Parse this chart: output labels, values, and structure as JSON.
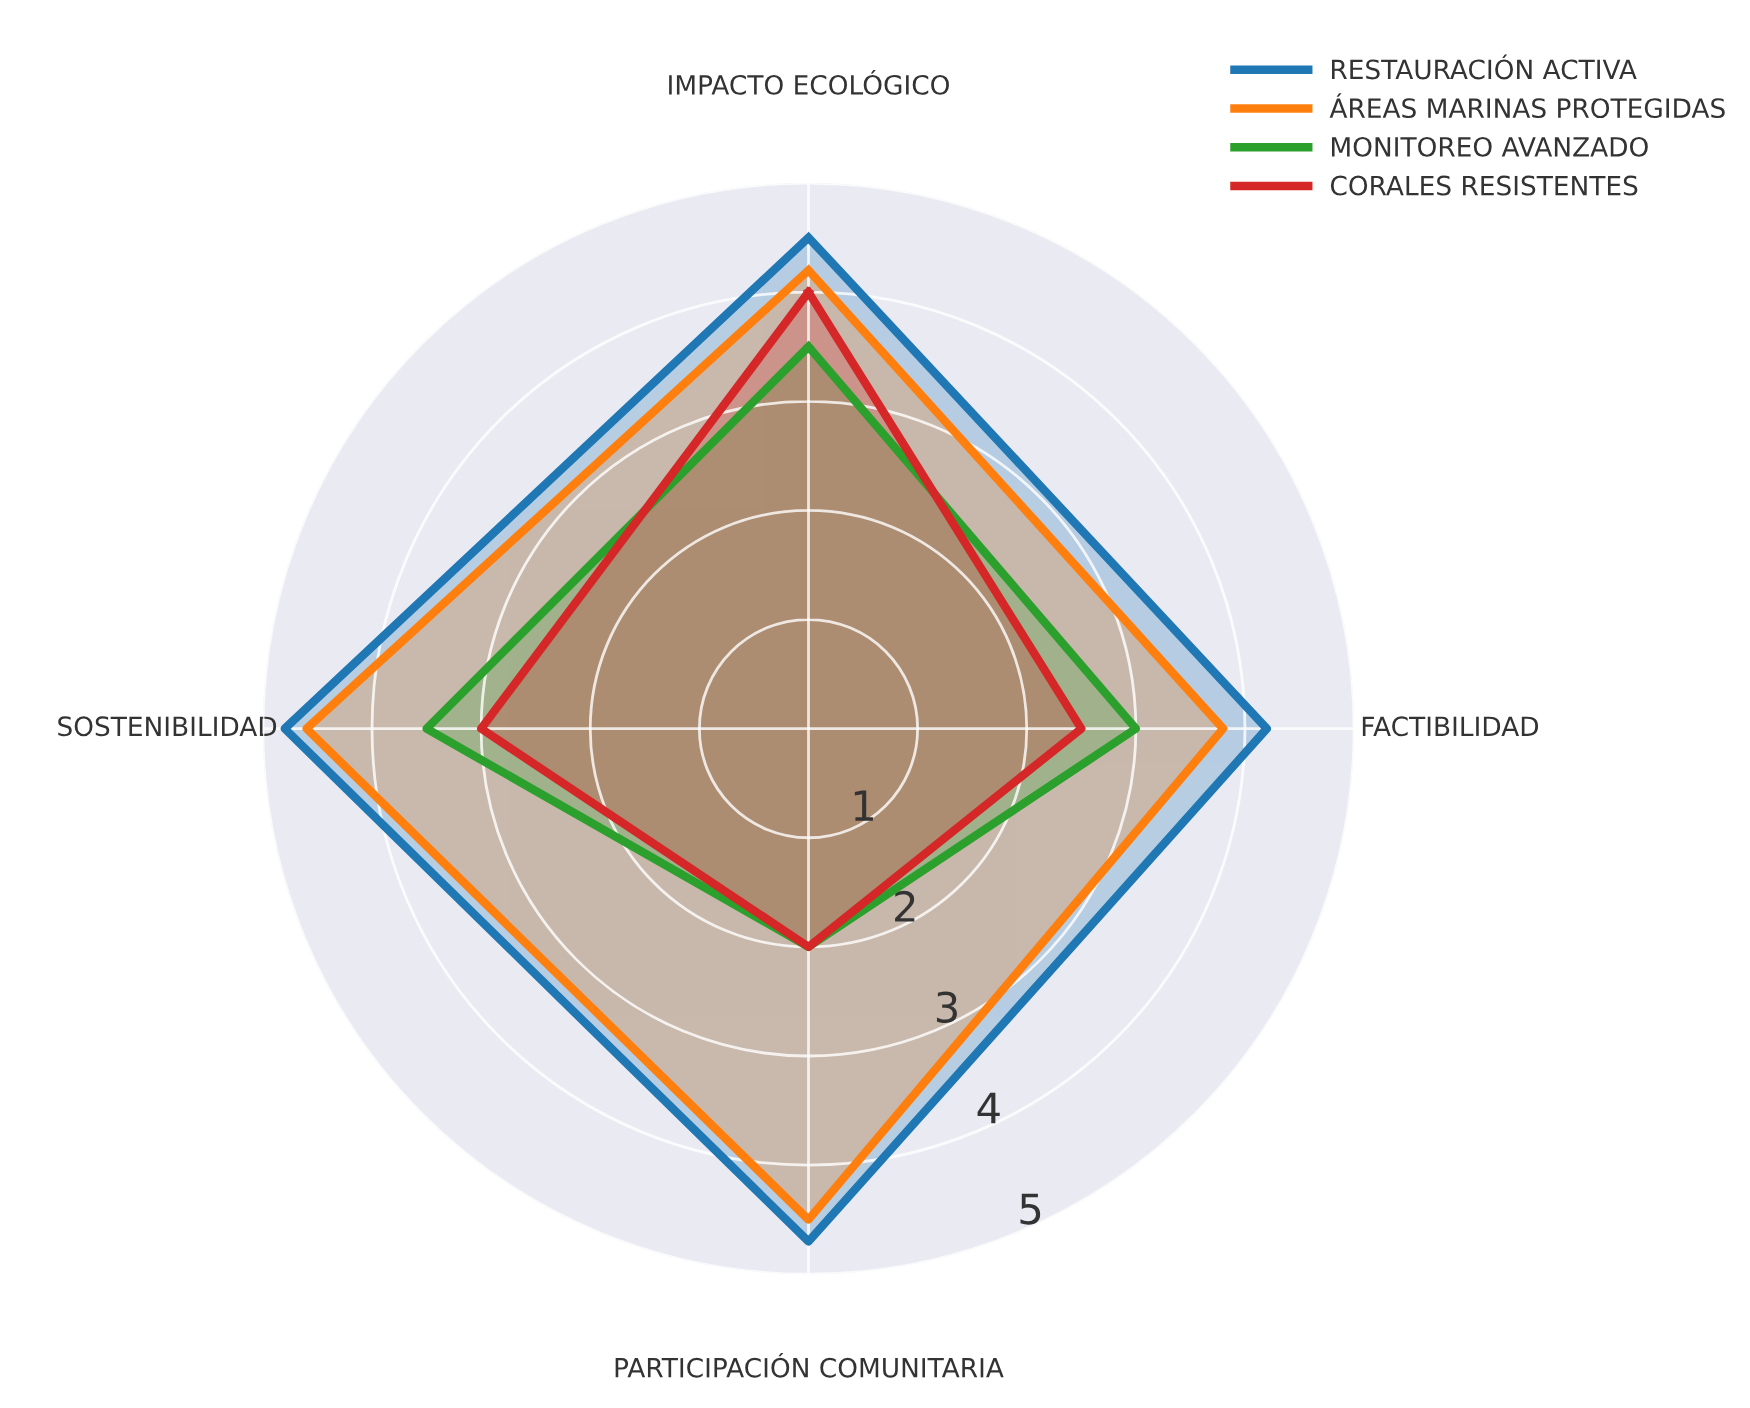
{
  "chart_data": {
    "type": "radar",
    "categories": [
      "IMPACTO ECOLÓGICO",
      "FACTIBILIDAD",
      "PARTICIPACIÓN COMUNITARIA",
      "SOSTENIBILIDAD"
    ],
    "series": [
      {
        "name": "RESTAURACIÓN ACTIVA",
        "color": "#1f77b4",
        "values": [
          4.5,
          4.2,
          4.7,
          4.8
        ]
      },
      {
        "name": "ÁREAS MARINAS PROTEGIDAS",
        "color": "#ff7f0e",
        "values": [
          4.2,
          3.8,
          4.5,
          4.6
        ]
      },
      {
        "name": "MONITOREO AVANZADO",
        "color": "#2ca02c",
        "values": [
          3.5,
          3.0,
          2.0,
          3.5
        ]
      },
      {
        "name": "CORALES RESISTENTES",
        "color": "#d62728",
        "values": [
          4.0,
          2.5,
          2.0,
          3.0
        ]
      }
    ],
    "ylim": [
      0,
      5
    ],
    "yticks": [
      1,
      2,
      3,
      4,
      5
    ],
    "grid": true,
    "legend": "top right"
  }
}
